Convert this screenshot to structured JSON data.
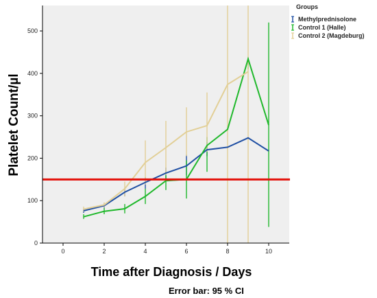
{
  "chart_data": {
    "type": "line",
    "xlabel": "Time after Diagnosis / Days",
    "ylabel": "Platelet Count/µl",
    "xlim": [
      -1,
      11
    ],
    "ylim": [
      0,
      560
    ],
    "xticks": [
      0,
      2,
      4,
      6,
      8,
      10
    ],
    "yticks": [
      0,
      100,
      200,
      300,
      400,
      500
    ],
    "reference_line": {
      "y": 150,
      "color": "#e3120b"
    },
    "footnote": "Error bar: 95 % CI",
    "legend": {
      "title": "Groups",
      "placement": "top-right"
    },
    "background": "#efefef",
    "grid": false,
    "series": [
      {
        "name": "Methylprednisolone",
        "color": "#1f4fa3",
        "x": [
          1,
          2,
          3,
          4,
          5,
          6,
          7,
          8,
          9,
          10
        ],
        "values": [
          76,
          88,
          120,
          143,
          165,
          182,
          220,
          226,
          248,
          217
        ],
        "err_low": [
          71,
          83,
          110,
          128,
          150,
          160,
          205,
          null,
          null,
          null
        ],
        "err_high": [
          81,
          93,
          130,
          155,
          178,
          208,
          238,
          null,
          null,
          null
        ]
      },
      {
        "name": "Control 1 (Halle)",
        "color": "#1fb82b",
        "x": [
          1,
          2,
          3,
          4,
          5,
          6,
          7,
          8,
          9,
          10
        ],
        "values": [
          62,
          75,
          81,
          110,
          147,
          150,
          230,
          268,
          434,
          278
        ],
        "err_low": [
          57,
          68,
          70,
          92,
          125,
          105,
          168,
          null,
          410,
          38
        ],
        "err_high": [
          68,
          83,
          92,
          128,
          168,
          195,
          250,
          null,
          437,
          520
        ]
      },
      {
        "name": "Control 2 (Magdeburg)",
        "color": "#e2cf96",
        "x": [
          1,
          2,
          3,
          4,
          5,
          6,
          7,
          8,
          9
        ],
        "values": [
          80,
          90,
          128,
          190,
          225,
          262,
          277,
          374,
          404
        ],
        "err_low": [
          74,
          84,
          110,
          138,
          160,
          205,
          215,
          0,
          0
        ],
        "err_high": [
          86,
          96,
          145,
          242,
          288,
          320,
          355,
          560,
          560
        ]
      }
    ]
  }
}
